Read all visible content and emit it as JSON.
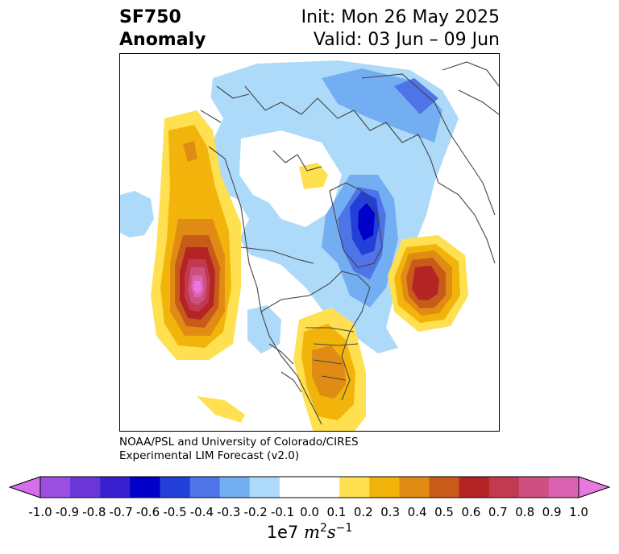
{
  "header": {
    "title_line1": "SF750",
    "title_line2": "Anomaly",
    "init": "Init: Mon 26 May 2025",
    "valid": "Valid: 03 Jun – 09 Jun"
  },
  "credit": {
    "line1": "NOAA/PSL and University of Colorado/CIRES",
    "line2": "Experimental LIM Forecast (v2.0)"
  },
  "colorbar": {
    "ticks": [
      "-1.0",
      "-0.9",
      "-0.8",
      "-0.7",
      "-0.6",
      "-0.5",
      "-0.4",
      "-0.3",
      "-0.2",
      "-0.1",
      "0.0",
      "0.1",
      "0.2",
      "0.3",
      "0.4",
      "0.5",
      "0.6",
      "0.7",
      "0.8",
      "0.9",
      "1.0"
    ],
    "colors": [
      "#9a4fe0",
      "#6a36d8",
      "#3a1fd0",
      "#0000c8",
      "#2240d8",
      "#4e74e8",
      "#74aef2",
      "#aedafa",
      "#ffffff",
      "#ffffff",
      "#ffe050",
      "#f2b40a",
      "#e08c14",
      "#c85a1a",
      "#b42424",
      "#c23a50",
      "#ce5080",
      "#da62b0"
    ],
    "end_low": "#d56ee8",
    "end_high": "#e878e0",
    "units_base": "1e7",
    "units_m": "m",
    "units_m_exp": "2",
    "units_s": "s",
    "units_s_exp": "−1"
  }
}
